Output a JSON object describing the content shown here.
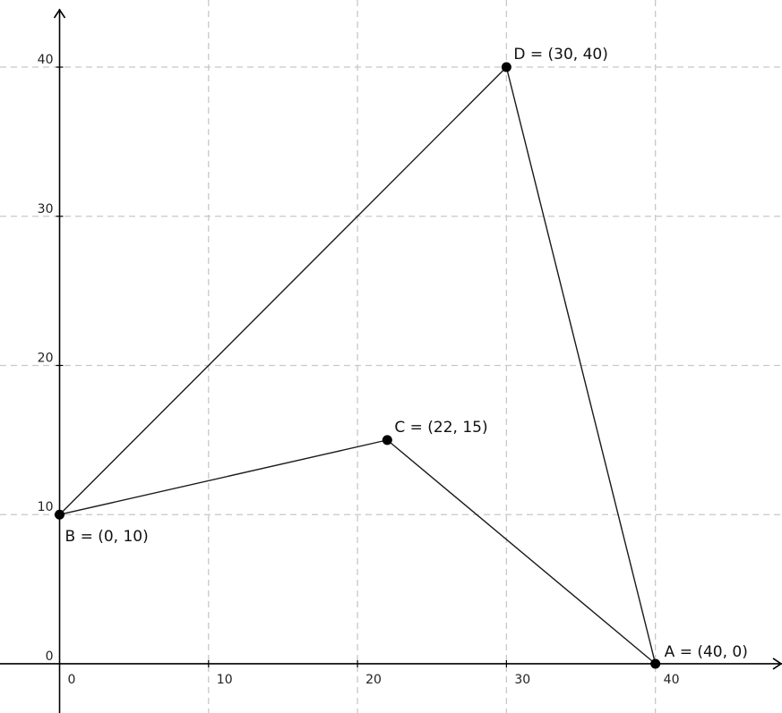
{
  "chart_data": {
    "type": "scatter",
    "x_ticks": [
      "0",
      "10",
      "20",
      "30",
      "40"
    ],
    "y_ticks": [
      "0",
      "10",
      "20",
      "30",
      "40"
    ],
    "xlim": [
      -4,
      48.5
    ],
    "ylim": [
      -3.3,
      44.5
    ],
    "grid": true,
    "points": [
      {
        "name": "A",
        "x": 40,
        "y": 0,
        "label": "A = (40, 0)"
      },
      {
        "name": "B",
        "x": 0,
        "y": 10,
        "label": "B = (0, 10)"
      },
      {
        "name": "C",
        "x": 22,
        "y": 15,
        "label": "C = (22, 15)"
      },
      {
        "name": "D",
        "x": 30,
        "y": 40,
        "label": "D = (30, 40)"
      }
    ],
    "segments": [
      [
        "B",
        "D"
      ],
      [
        "D",
        "A"
      ],
      [
        "A",
        "C"
      ],
      [
        "C",
        "B"
      ]
    ]
  }
}
